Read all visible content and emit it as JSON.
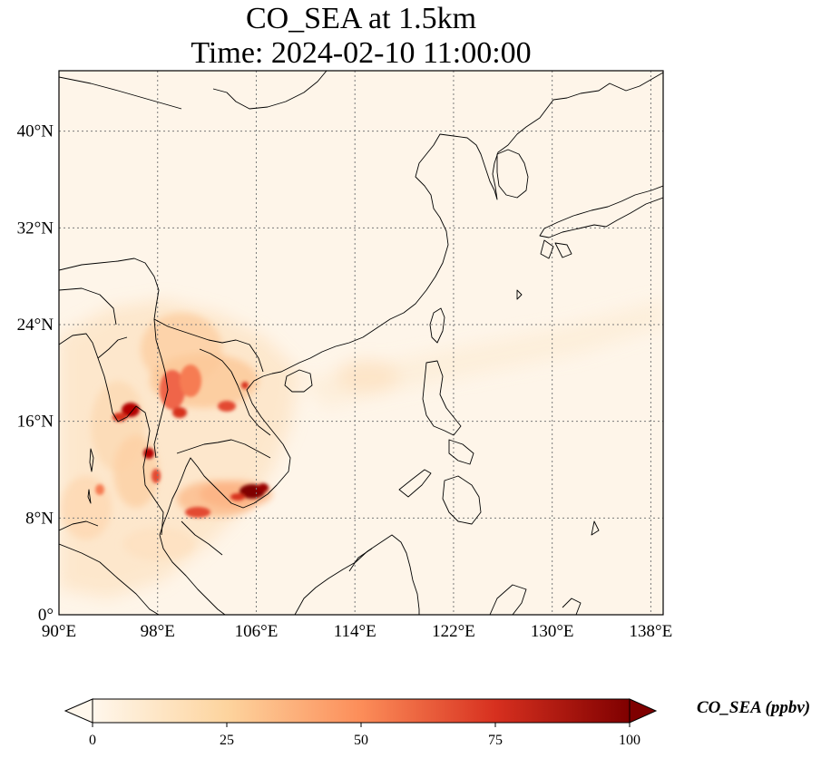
{
  "title": {
    "line1": "CO_SEA at 1.5km",
    "line2": "Time: 2024-02-10 11:00:00"
  },
  "map": {
    "lon_range": [
      90,
      139
    ],
    "lat_range": [
      0,
      45
    ],
    "lon_ticks": [
      {
        "value": 90,
        "label": "90°E"
      },
      {
        "value": 98,
        "label": "98°E"
      },
      {
        "value": 106,
        "label": "106°E"
      },
      {
        "value": 114,
        "label": "114°E"
      },
      {
        "value": 122,
        "label": "122°E"
      },
      {
        "value": 130,
        "label": "130°E"
      },
      {
        "value": 138,
        "label": "138°E"
      }
    ],
    "lat_ticks": [
      {
        "value": 0,
        "label": "0°"
      },
      {
        "value": 8,
        "label": "8°N"
      },
      {
        "value": 16,
        "label": "16°N"
      },
      {
        "value": 24,
        "label": "24°N"
      },
      {
        "value": 32,
        "label": "32°N"
      },
      {
        "value": 40,
        "label": "40°N"
      }
    ],
    "gridlines": true,
    "coastline_color": "#000000"
  },
  "colorbar": {
    "label": "CO_SEA (ppbv)",
    "colormap": "OrRd",
    "range": [
      0,
      100
    ],
    "extend": "both",
    "ticks": [
      {
        "value": 0,
        "label": "0"
      },
      {
        "value": 25,
        "label": "25"
      },
      {
        "value": 50,
        "label": "50"
      },
      {
        "value": 75,
        "label": "75"
      },
      {
        "value": 100,
        "label": "100"
      }
    ]
  }
}
